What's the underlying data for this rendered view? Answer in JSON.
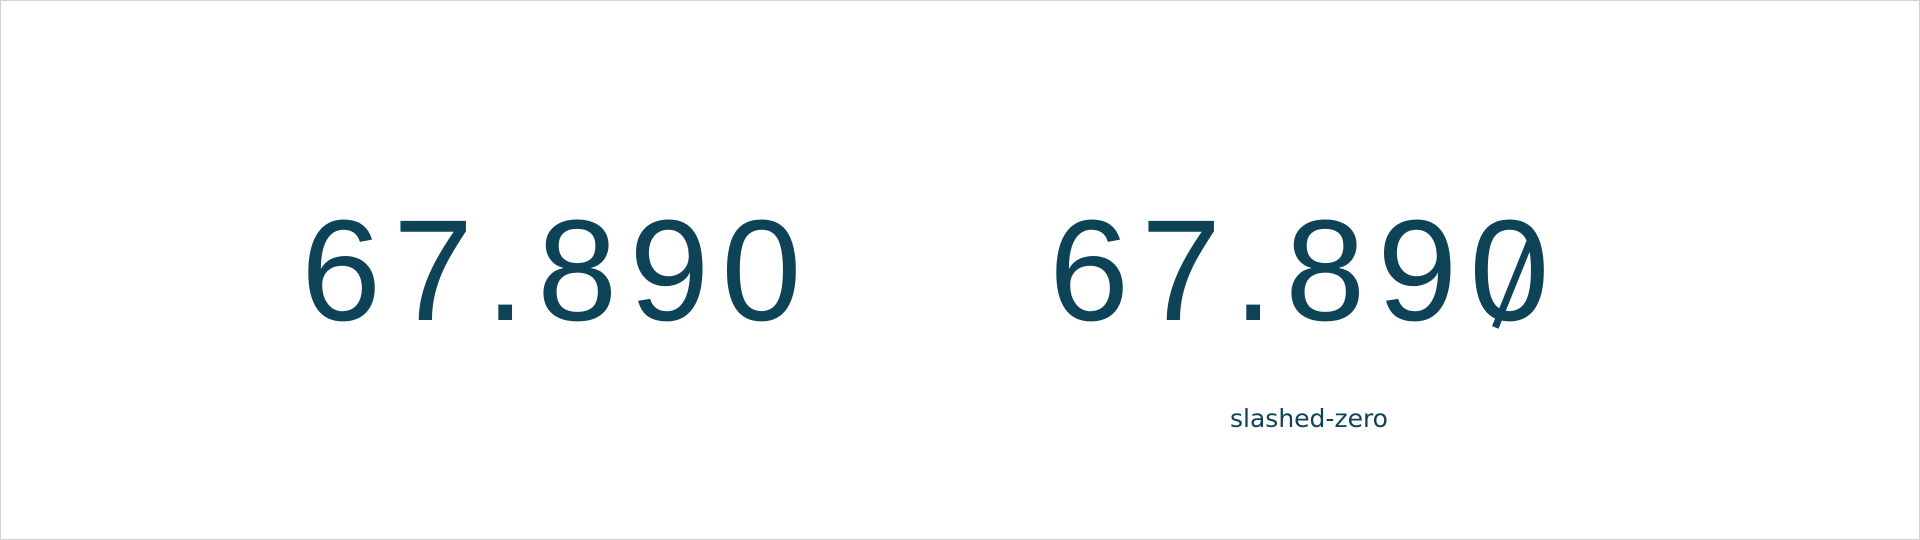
{
  "colors": {
    "text": "#0d4257",
    "border": "#d2d2d2",
    "background": "#ffffff"
  },
  "samples": {
    "plain": {
      "text": "67.890"
    },
    "slashed": {
      "prefix": "67.89",
      "zero": "0",
      "caption": "slashed-zero"
    }
  }
}
